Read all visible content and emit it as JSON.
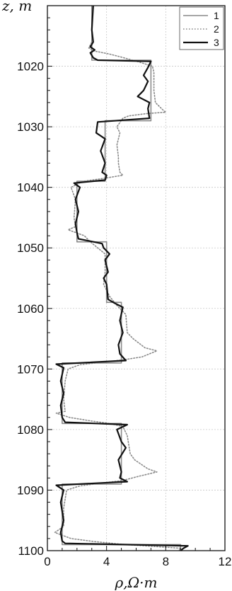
{
  "chart_data": {
    "type": "line",
    "y_label": "z, m",
    "x_label": "ρ,Ω·m",
    "xlim": [
      0,
      12
    ],
    "ylim": [
      1100,
      1010
    ],
    "y_inverted": true,
    "x_ticks": [
      0,
      4,
      8,
      12
    ],
    "y_ticks": [
      1020,
      1030,
      1040,
      1050,
      1060,
      1070,
      1080,
      1090,
      1100
    ],
    "grid": true,
    "legend_position": "top-right",
    "series": [
      {
        "name": "1",
        "color": "#8a8a8a",
        "style": "solid",
        "points": [
          [
            3,
            1010
          ],
          [
            3,
            1019
          ],
          [
            7,
            1019
          ],
          [
            7,
            1029
          ],
          [
            3.9,
            1029
          ],
          [
            3.9,
            1039
          ],
          [
            2,
            1039
          ],
          [
            2,
            1049
          ],
          [
            4,
            1049
          ],
          [
            4,
            1059
          ],
          [
            5,
            1059
          ],
          [
            5,
            1069
          ],
          [
            1,
            1069
          ],
          [
            1,
            1079
          ],
          [
            5,
            1079
          ],
          [
            5,
            1089
          ],
          [
            1,
            1089
          ],
          [
            1,
            1099
          ],
          [
            9,
            1099
          ],
          [
            9,
            1100
          ]
        ]
      },
      {
        "name": "2",
        "color": "#8a8a8a",
        "style": "dotted",
        "points": [
          [
            3,
            1010
          ],
          [
            3,
            1016
          ],
          [
            2.8,
            1017
          ],
          [
            3.2,
            1017.5
          ],
          [
            4.2,
            1018
          ],
          [
            5,
            1018.5
          ],
          [
            6.2,
            1019.3
          ],
          [
            7.1,
            1020
          ],
          [
            7.2,
            1021
          ],
          [
            7.2,
            1024
          ],
          [
            7.3,
            1026
          ],
          [
            7.8,
            1027.2
          ],
          [
            8,
            1027.6
          ],
          [
            6.8,
            1027.8
          ],
          [
            5.5,
            1028.2
          ],
          [
            5.1,
            1028.6
          ],
          [
            4.7,
            1030
          ],
          [
            4.9,
            1031
          ],
          [
            4.7,
            1033
          ],
          [
            4.8,
            1035
          ],
          [
            4.8,
            1036
          ],
          [
            4.9,
            1037.5
          ],
          [
            5.1,
            1038
          ],
          [
            3.6,
            1038.6
          ],
          [
            2.4,
            1039
          ],
          [
            1.6,
            1040
          ],
          [
            1.9,
            1042
          ],
          [
            1.8,
            1045
          ],
          [
            1.9,
            1046.5
          ],
          [
            1.4,
            1047
          ],
          [
            2.5,
            1048
          ],
          [
            2.9,
            1049
          ],
          [
            3.4,
            1050
          ],
          [
            3.9,
            1051
          ],
          [
            3.9,
            1054
          ],
          [
            3.8,
            1056
          ],
          [
            4.2,
            1058
          ],
          [
            4.7,
            1059.5
          ],
          [
            5.3,
            1061
          ],
          [
            5.4,
            1064
          ],
          [
            5.8,
            1065
          ],
          [
            6.6,
            1066.5
          ],
          [
            7.4,
            1067
          ],
          [
            6.4,
            1068
          ],
          [
            5.1,
            1068.5
          ],
          [
            2.2,
            1069.3
          ],
          [
            1.4,
            1070
          ],
          [
            1.2,
            1072
          ],
          [
            1.1,
            1075
          ],
          [
            1.2,
            1077
          ],
          [
            0.6,
            1077.3
          ],
          [
            1.5,
            1078
          ],
          [
            3,
            1078.6
          ],
          [
            4.2,
            1079
          ],
          [
            5.1,
            1079.5
          ],
          [
            5.4,
            1081
          ],
          [
            5.6,
            1084
          ],
          [
            5.9,
            1085
          ],
          [
            6.8,
            1086.5
          ],
          [
            7.4,
            1087
          ],
          [
            6.2,
            1087.7
          ],
          [
            5.1,
            1088.4
          ],
          [
            2.2,
            1089.3
          ],
          [
            1.3,
            1090
          ],
          [
            1.1,
            1093
          ],
          [
            1.1,
            1096
          ],
          [
            0.5,
            1097
          ],
          [
            1.6,
            1098
          ],
          [
            3.2,
            1098.5
          ],
          [
            5.2,
            1099
          ],
          [
            7.2,
            1099.3
          ],
          [
            9,
            1099.6
          ],
          [
            8.9,
            1100
          ]
        ]
      },
      {
        "name": "3",
        "color": "#111111",
        "style": "solid",
        "points": [
          [
            3.1,
            1010
          ],
          [
            3,
            1014
          ],
          [
            3.1,
            1016
          ],
          [
            2.9,
            1016.8
          ],
          [
            3.2,
            1017.3
          ],
          [
            2.9,
            1017.8
          ],
          [
            3.1,
            1018.6
          ],
          [
            3.4,
            1019
          ],
          [
            7,
            1019.2
          ],
          [
            6.8,
            1020.2
          ],
          [
            6.5,
            1021.5
          ],
          [
            6.8,
            1022.5
          ],
          [
            6.5,
            1024
          ],
          [
            6.1,
            1025
          ],
          [
            6.9,
            1026
          ],
          [
            6.8,
            1027
          ],
          [
            6.9,
            1028.6
          ],
          [
            3.4,
            1029.2
          ],
          [
            3.3,
            1031
          ],
          [
            3.9,
            1032
          ],
          [
            3.6,
            1034
          ],
          [
            3.9,
            1036
          ],
          [
            3.7,
            1037.5
          ],
          [
            4,
            1038
          ],
          [
            3.9,
            1038.8
          ],
          [
            1.8,
            1039.3
          ],
          [
            2.2,
            1040
          ],
          [
            1.9,
            1042
          ],
          [
            2.1,
            1044
          ],
          [
            1.9,
            1046
          ],
          [
            2,
            1047.5
          ],
          [
            2.1,
            1048.5
          ],
          [
            3.7,
            1049.3
          ],
          [
            3.8,
            1050
          ],
          [
            4.2,
            1051
          ],
          [
            3.9,
            1052
          ],
          [
            4.1,
            1054
          ],
          [
            3.8,
            1055
          ],
          [
            4,
            1056
          ],
          [
            4.1,
            1058.5
          ],
          [
            4.6,
            1059.2
          ],
          [
            5.1,
            1059.8
          ],
          [
            4.9,
            1062
          ],
          [
            5.1,
            1064
          ],
          [
            4.8,
            1066
          ],
          [
            4.9,
            1067.5
          ],
          [
            5.3,
            1068.6
          ],
          [
            0.6,
            1069.2
          ],
          [
            1.1,
            1069.8
          ],
          [
            0.9,
            1072
          ],
          [
            1.1,
            1074
          ],
          [
            0.9,
            1076
          ],
          [
            1,
            1078
          ],
          [
            1.2,
            1078.8
          ],
          [
            5.4,
            1079.2
          ],
          [
            4.7,
            1080
          ],
          [
            5,
            1082
          ],
          [
            5.3,
            1083
          ],
          [
            4.8,
            1085
          ],
          [
            5,
            1087
          ],
          [
            4.9,
            1088
          ],
          [
            5.4,
            1088.6
          ],
          [
            0.6,
            1089.2
          ],
          [
            1.1,
            1090
          ],
          [
            0.9,
            1092
          ],
          [
            1.1,
            1095
          ],
          [
            0.9,
            1097
          ],
          [
            1,
            1098.4
          ],
          [
            1.2,
            1098.8
          ],
          [
            9.5,
            1099.2
          ],
          [
            9.2,
            1099.6
          ],
          [
            9,
            1100
          ]
        ]
      }
    ]
  }
}
